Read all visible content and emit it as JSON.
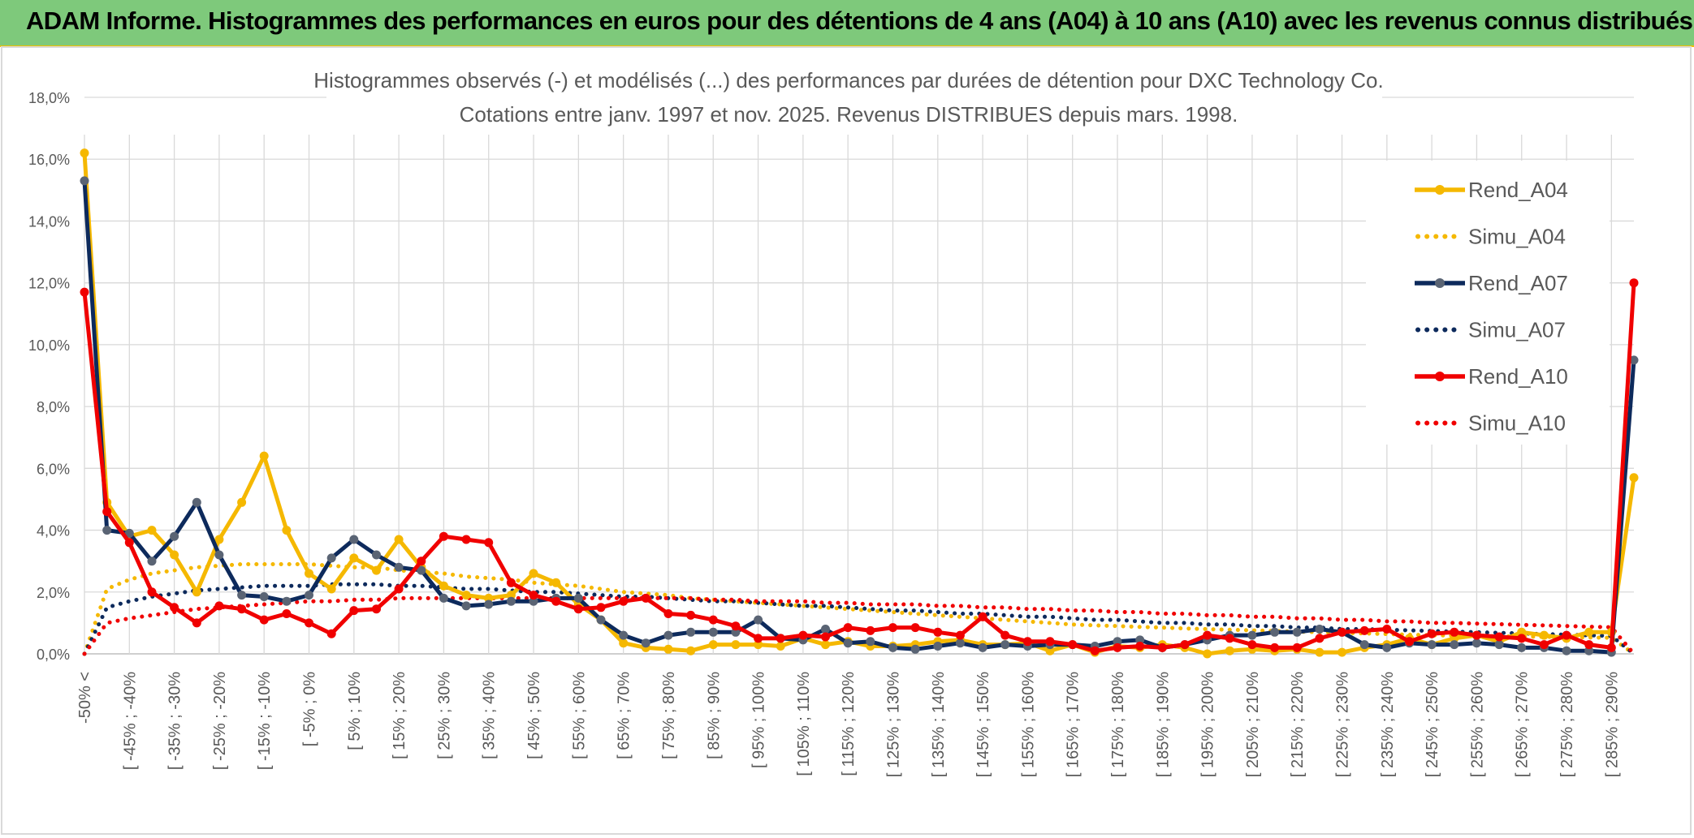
{
  "banner": {
    "title": "ADAM Informe. Histogrammes des performances en euros pour des détentions de 4 ans (A04) à 10 ans (A10) avec les revenus connus distribués"
  },
  "colors": {
    "a04": "#f5b800",
    "a07": "#0d2a5c",
    "a10": "#f00000",
    "marker07": "#5a6474",
    "banner": "#7ec97b"
  },
  "chart_data": {
    "type": "line",
    "title": "Histogrammes observés (-) et modélisés (...) des performances par durées de détention pour DXC Technology Co.",
    "subtitle": "Cotations entre janv. 1997 et nov. 2025. Revenus DISTRIBUES depuis mars. 1998.",
    "ylim": [
      0,
      18
    ],
    "y_ticks": [
      "0,0%",
      "2,0%",
      "4,0%",
      "6,0%",
      "8,0%",
      "10,0%",
      "12,0%",
      "14,0%",
      "16,0%",
      "18,0%"
    ],
    "x_tick_labels": [
      "-50% <",
      "[ -45% ; -40%",
      "[ -35% ; -30%",
      "[ -25% ; -20%",
      "[ -15% ; -10%",
      "[ -5% ; 0%",
      "[ 5% ; 10%",
      "[ 15% ; 20%",
      "[ 25% ; 30%",
      "[ 35% ; 40%",
      "[ 45% ; 50%",
      "[ 55% ; 60%",
      "[ 65% ; 70%",
      "[ 75% ; 80%",
      "[ 85% ; 90%",
      "[ 95% ; 100%",
      "[ 105% ; 110%",
      "[ 115% ; 120%",
      "[ 125% ; 130%",
      "[ 135% ; 140%",
      "[ 145% ; 150%",
      "[ 155% ; 160%",
      "[ 165% ; 170%",
      "[ 175% ; 180%",
      "[ 185% ; 190%",
      "[ 195% ; 200%",
      "[ 205% ; 210%",
      "[ 215% ; 220%",
      "[ 225% ; 230%",
      "[ 235% ; 240%",
      "[ 245% ; 250%",
      "[ 255% ; 260%",
      "[ 265% ; 270%",
      "[ 275% ; 280%",
      "[ 285% ; 290%"
    ],
    "n_points": 70,
    "legend_position": "right",
    "series": [
      {
        "name": "Rend_A04",
        "style": "solid",
        "color": "#f5b800",
        "values": [
          16.2,
          4.9,
          3.8,
          4.0,
          3.2,
          2.0,
          3.7,
          4.9,
          6.4,
          4.0,
          2.6,
          2.1,
          3.1,
          2.7,
          3.7,
          2.8,
          2.2,
          1.9,
          1.8,
          1.9,
          2.6,
          2.3,
          1.6,
          1.1,
          0.35,
          0.2,
          0.15,
          0.1,
          0.3,
          0.3,
          0.3,
          0.25,
          0.5,
          0.3,
          0.4,
          0.25,
          0.25,
          0.3,
          0.4,
          0.45,
          0.3,
          0.3,
          0.35,
          0.1,
          0.3,
          0.05,
          0.25,
          0.2,
          0.3,
          0.2,
          0.0,
          0.1,
          0.15,
          0.1,
          0.15,
          0.05,
          0.05,
          0.2,
          0.3,
          0.5,
          0.3,
          0.5,
          0.6,
          0.4,
          0.7,
          0.6,
          0.5,
          0.7,
          0.7,
          5.7
        ]
      },
      {
        "name": "Simu_A04",
        "style": "dotted",
        "color": "#f5b800",
        "values": [
          0.0,
          2.1,
          2.4,
          2.6,
          2.7,
          2.8,
          2.85,
          2.9,
          2.9,
          2.9,
          2.9,
          2.85,
          2.8,
          2.8,
          2.7,
          2.65,
          2.6,
          2.5,
          2.45,
          2.4,
          2.3,
          2.25,
          2.2,
          2.1,
          2.0,
          1.95,
          1.9,
          1.8,
          1.75,
          1.7,
          1.65,
          1.6,
          1.55,
          1.5,
          1.45,
          1.4,
          1.35,
          1.3,
          1.25,
          1.2,
          1.15,
          1.1,
          1.05,
          1.0,
          0.95,
          0.92,
          0.9,
          0.87,
          0.85,
          0.82,
          0.8,
          0.78,
          0.76,
          0.74,
          0.72,
          0.7,
          0.68,
          0.66,
          0.64,
          0.62,
          0.6,
          0.59,
          0.58,
          0.57,
          0.56,
          0.55,
          0.54,
          0.53,
          0.52,
          0.0
        ]
      },
      {
        "name": "Rend_A07",
        "style": "solid",
        "color": "#0d2a5c",
        "values": [
          15.3,
          4.0,
          3.9,
          3.0,
          3.8,
          4.9,
          3.2,
          1.9,
          1.85,
          1.7,
          1.9,
          3.1,
          3.7,
          3.2,
          2.8,
          2.7,
          1.8,
          1.55,
          1.6,
          1.7,
          1.7,
          1.8,
          1.8,
          1.1,
          0.6,
          0.35,
          0.6,
          0.7,
          0.7,
          0.7,
          1.1,
          0.5,
          0.45,
          0.8,
          0.35,
          0.4,
          0.2,
          0.15,
          0.25,
          0.35,
          0.2,
          0.3,
          0.25,
          0.3,
          0.3,
          0.25,
          0.4,
          0.45,
          0.2,
          0.3,
          0.45,
          0.6,
          0.6,
          0.7,
          0.7,
          0.8,
          0.7,
          0.3,
          0.2,
          0.35,
          0.3,
          0.3,
          0.35,
          0.3,
          0.2,
          0.2,
          0.1,
          0.1,
          0.05,
          9.5
        ]
      },
      {
        "name": "Simu_A07",
        "style": "dotted",
        "color": "#0d2a5c",
        "values": [
          0.0,
          1.5,
          1.7,
          1.85,
          1.95,
          2.05,
          2.1,
          2.15,
          2.2,
          2.2,
          2.2,
          2.25,
          2.25,
          2.25,
          2.2,
          2.2,
          2.15,
          2.1,
          2.1,
          2.05,
          2.0,
          2.0,
          1.95,
          1.9,
          1.85,
          1.85,
          1.8,
          1.75,
          1.7,
          1.7,
          1.65,
          1.6,
          1.55,
          1.55,
          1.5,
          1.45,
          1.4,
          1.4,
          1.35,
          1.3,
          1.3,
          1.25,
          1.2,
          1.2,
          1.15,
          1.1,
          1.1,
          1.05,
          1.0,
          1.0,
          0.95,
          0.95,
          0.9,
          0.9,
          0.85,
          0.85,
          0.8,
          0.8,
          0.78,
          0.76,
          0.74,
          0.72,
          0.7,
          0.68,
          0.66,
          0.64,
          0.62,
          0.6,
          0.58,
          0.0
        ]
      },
      {
        "name": "Rend_A10",
        "style": "solid",
        "color": "#f00000",
        "values": [
          11.7,
          4.6,
          3.6,
          2.0,
          1.5,
          1.0,
          1.55,
          1.45,
          1.1,
          1.3,
          1.0,
          0.65,
          1.4,
          1.45,
          2.1,
          3.0,
          3.8,
          3.7,
          3.6,
          2.3,
          1.9,
          1.7,
          1.45,
          1.5,
          1.7,
          1.8,
          1.3,
          1.25,
          1.1,
          0.9,
          0.5,
          0.5,
          0.6,
          0.55,
          0.85,
          0.75,
          0.85,
          0.85,
          0.7,
          0.6,
          1.2,
          0.6,
          0.4,
          0.4,
          0.3,
          0.1,
          0.2,
          0.25,
          0.2,
          0.3,
          0.6,
          0.5,
          0.3,
          0.2,
          0.2,
          0.5,
          0.7,
          0.75,
          0.8,
          0.4,
          0.65,
          0.7,
          0.6,
          0.55,
          0.5,
          0.3,
          0.6,
          0.3,
          0.2,
          12.0
        ]
      },
      {
        "name": "Simu_A10",
        "style": "dotted",
        "color": "#f00000",
        "values": [
          0.0,
          1.0,
          1.15,
          1.25,
          1.35,
          1.45,
          1.5,
          1.55,
          1.6,
          1.65,
          1.7,
          1.7,
          1.75,
          1.75,
          1.8,
          1.8,
          1.8,
          1.8,
          1.8,
          1.8,
          1.8,
          1.8,
          1.8,
          1.8,
          1.8,
          1.8,
          1.8,
          1.8,
          1.75,
          1.75,
          1.7,
          1.7,
          1.7,
          1.65,
          1.65,
          1.6,
          1.6,
          1.6,
          1.55,
          1.55,
          1.5,
          1.5,
          1.45,
          1.45,
          1.4,
          1.4,
          1.35,
          1.35,
          1.3,
          1.3,
          1.25,
          1.25,
          1.2,
          1.2,
          1.15,
          1.15,
          1.1,
          1.1,
          1.05,
          1.05,
          1.0,
          1.0,
          0.98,
          0.96,
          0.94,
          0.92,
          0.9,
          0.88,
          0.86,
          0.0
        ]
      }
    ]
  }
}
